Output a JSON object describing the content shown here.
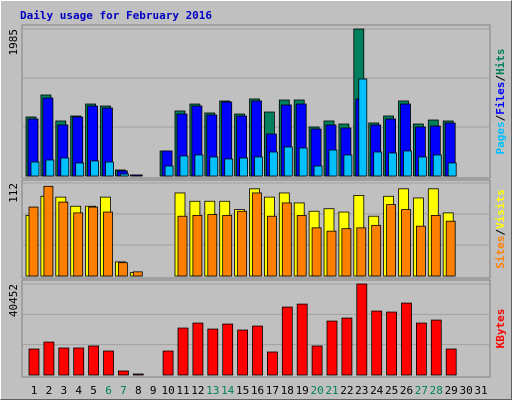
{
  "chart_data": [
    {
      "type": "bar",
      "title": "Daily usage for February 2016",
      "ylim": [
        0,
        1985
      ],
      "yticks": [
        1985
      ],
      "legend_separator": "/",
      "series": [
        {
          "name": "Hits",
          "color": "#00805C",
          "values": [
            797,
            1094,
            743,
            810,
            972,
            945,
            81,
            14,
            0,
            338,
            878,
            972,
            851,
            1013,
            837,
            1040,
            864,
            1026,
            1026,
            662,
            743,
            702,
            1985,
            716,
            810,
            1013,
            702,
            756,
            743,
            null,
            null
          ]
        },
        {
          "name": "Files",
          "color": "#0000FF",
          "values": [
            770,
            1053,
            689,
            797,
            945,
            918,
            68,
            14,
            0,
            338,
            837,
            945,
            824,
            999,
            810,
            1013,
            567,
            959,
            972,
            635,
            689,
            648,
            1040,
            689,
            770,
            972,
            662,
            675,
            716,
            null,
            null
          ]
        },
        {
          "name": "Pages",
          "color": "#00C0FF",
          "values": [
            189,
            216,
            243,
            176,
            203,
            189,
            27,
            0,
            0,
            135,
            270,
            284,
            257,
            230,
            243,
            257,
            324,
            392,
            378,
            135,
            351,
            284,
            1310,
            324,
            311,
            338,
            257,
            284,
            176,
            null,
            null
          ]
        }
      ]
    },
    {
      "type": "bar",
      "ylim": [
        0,
        112
      ],
      "yticks": [
        112
      ],
      "legend_separator": "/",
      "series": [
        {
          "name": "Visits",
          "color": "#FFFF00",
          "values": [
            73,
            96,
            95,
            84,
            84,
            95,
            17,
            4,
            0,
            0,
            100,
            90,
            90,
            90,
            80,
            105,
            95,
            100,
            88,
            78,
            81,
            77,
            97,
            72,
            96,
            105,
            94,
            105,
            76,
            null,
            null
          ]
        },
        {
          "name": "Sites",
          "color": "#FF8000",
          "values": [
            83,
            108,
            89,
            76,
            83,
            77,
            16,
            5,
            0,
            0,
            72,
            73,
            74,
            73,
            78,
            100,
            72,
            88,
            73,
            58,
            54,
            57,
            58,
            61,
            86,
            80,
            60,
            73,
            66,
            null,
            null
          ]
        }
      ]
    },
    {
      "type": "bar",
      "ylim": [
        0,
        40452
      ],
      "yticks": [
        40452
      ],
      "categories": [
        "1",
        "2",
        "3",
        "4",
        "5",
        "6",
        "7",
        "8",
        "9",
        "10",
        "11",
        "12",
        "13",
        "14",
        "15",
        "16",
        "17",
        "18",
        "19",
        "20",
        "21",
        "22",
        "23",
        "24",
        "25",
        "26",
        "27",
        "28",
        "29",
        "30",
        "31"
      ],
      "category_colors": [
        "#000000",
        "#000000",
        "#000000",
        "#000000",
        "#000000",
        "#00805C",
        "#00805C",
        "#000000",
        "#000000",
        "#000000",
        "#000000",
        "#000000",
        "#00805C",
        "#00805C",
        "#000000",
        "#000000",
        "#000000",
        "#000000",
        "#000000",
        "#00805C",
        "#00805C",
        "#000000",
        "#000000",
        "#000000",
        "#000000",
        "#000000",
        "#00805C",
        "#00805C",
        "#000000",
        "#000000",
        "#000000"
      ],
      "series": [
        {
          "name": "KBytes",
          "color": "#FF0000",
          "values": [
            11550,
            14650,
            12000,
            12000,
            12900,
            10660,
            1780,
            440,
            0,
            10660,
            20870,
            23090,
            20430,
            22650,
            19990,
            21760,
            10220,
            30200,
            31520,
            12900,
            23980,
            25310,
            40452,
            28420,
            27980,
            31970,
            23090,
            24420,
            11550,
            null,
            null
          ]
        }
      ]
    }
  ]
}
